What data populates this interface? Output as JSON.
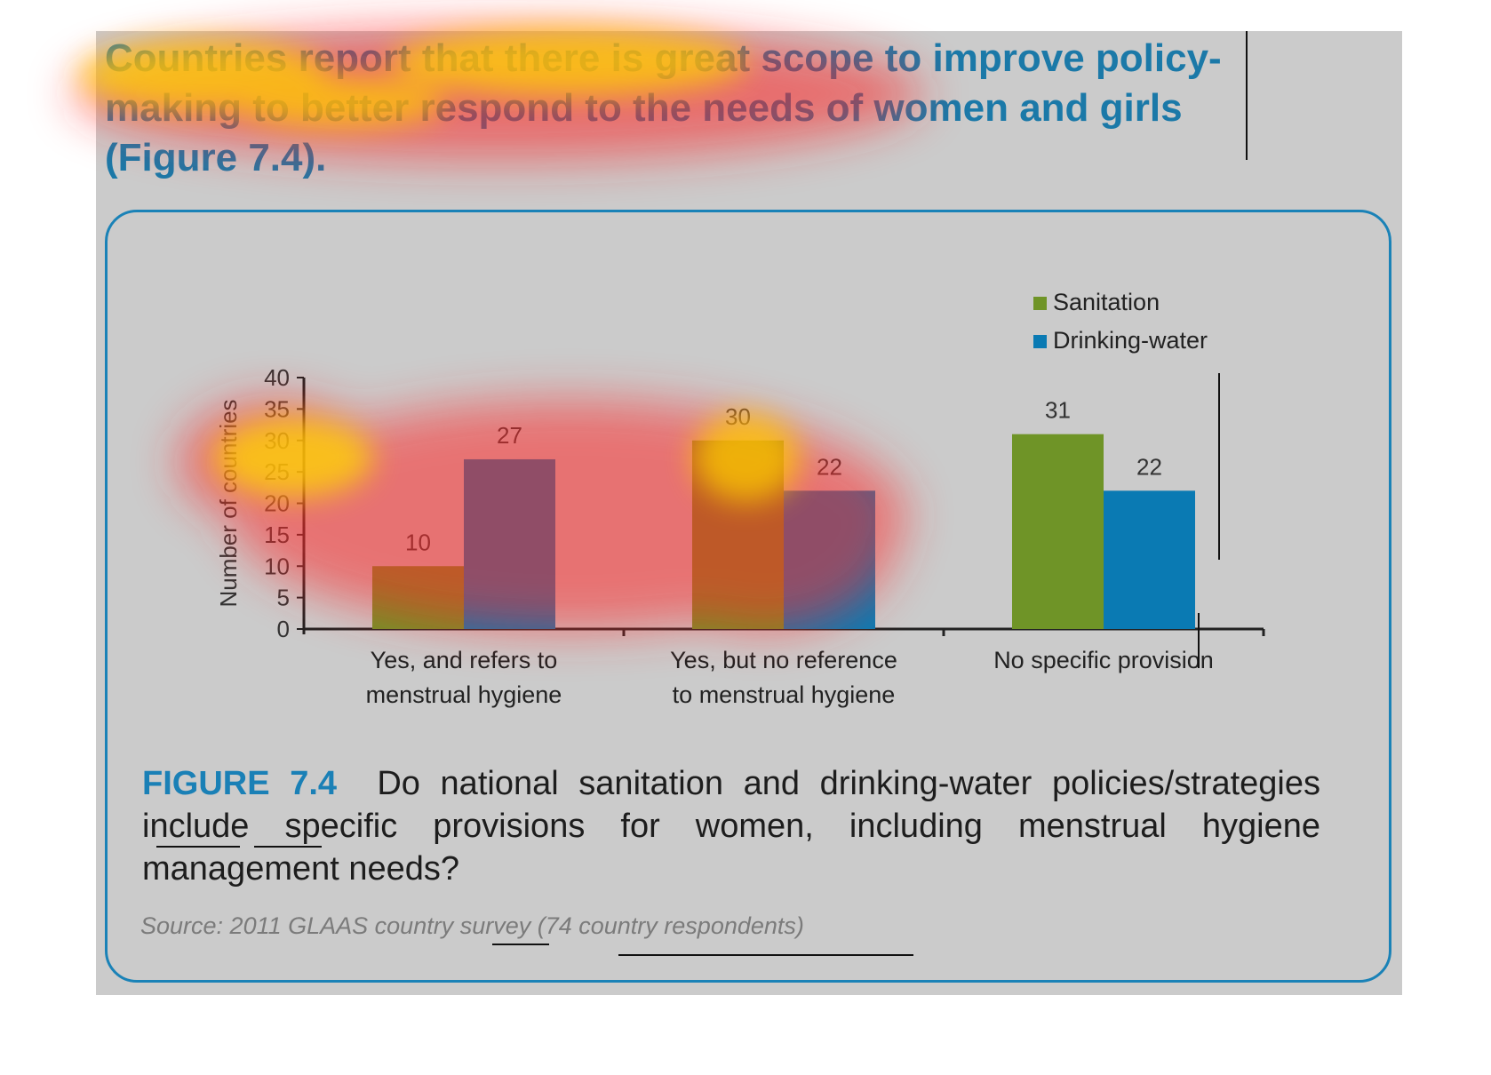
{
  "headline": "Countries report that there is great scope to improve policy-making to better respond to the needs of women and girls (Figure 7.4).",
  "figure": {
    "label": "FIGURE 7.4",
    "caption": "Do national sanitation and drinking-water policies/strategies include specific provisions for women, including menstrual hygiene management needs?",
    "source": "Source: 2011 GLAAS country survey (74 country respondents)"
  },
  "colors": {
    "sanitation": "#6f9427",
    "drinking_water": "#0a7ab3",
    "accent": "#1a82b7",
    "panel": "#cbcbcb"
  },
  "chart_data": {
    "type": "bar",
    "title": "",
    "xlabel": "",
    "ylabel": "Number of countries",
    "ylim": [
      0,
      40
    ],
    "yticks": [
      0,
      5,
      10,
      15,
      20,
      25,
      30,
      35,
      40
    ],
    "categories": [
      [
        "Yes, and refers to",
        "menstrual hygiene"
      ],
      [
        "Yes, but no reference",
        "to menstrual hygiene"
      ],
      [
        "No specific provision"
      ]
    ],
    "series": [
      {
        "name": "Sanitation",
        "values": [
          10,
          30,
          31
        ],
        "color": "#6f9427"
      },
      {
        "name": "Drinking-water",
        "values": [
          27,
          22,
          22
        ],
        "color": "#0a7ab3"
      }
    ],
    "legend_position": "top-right",
    "grid": false,
    "data_labels": true
  }
}
